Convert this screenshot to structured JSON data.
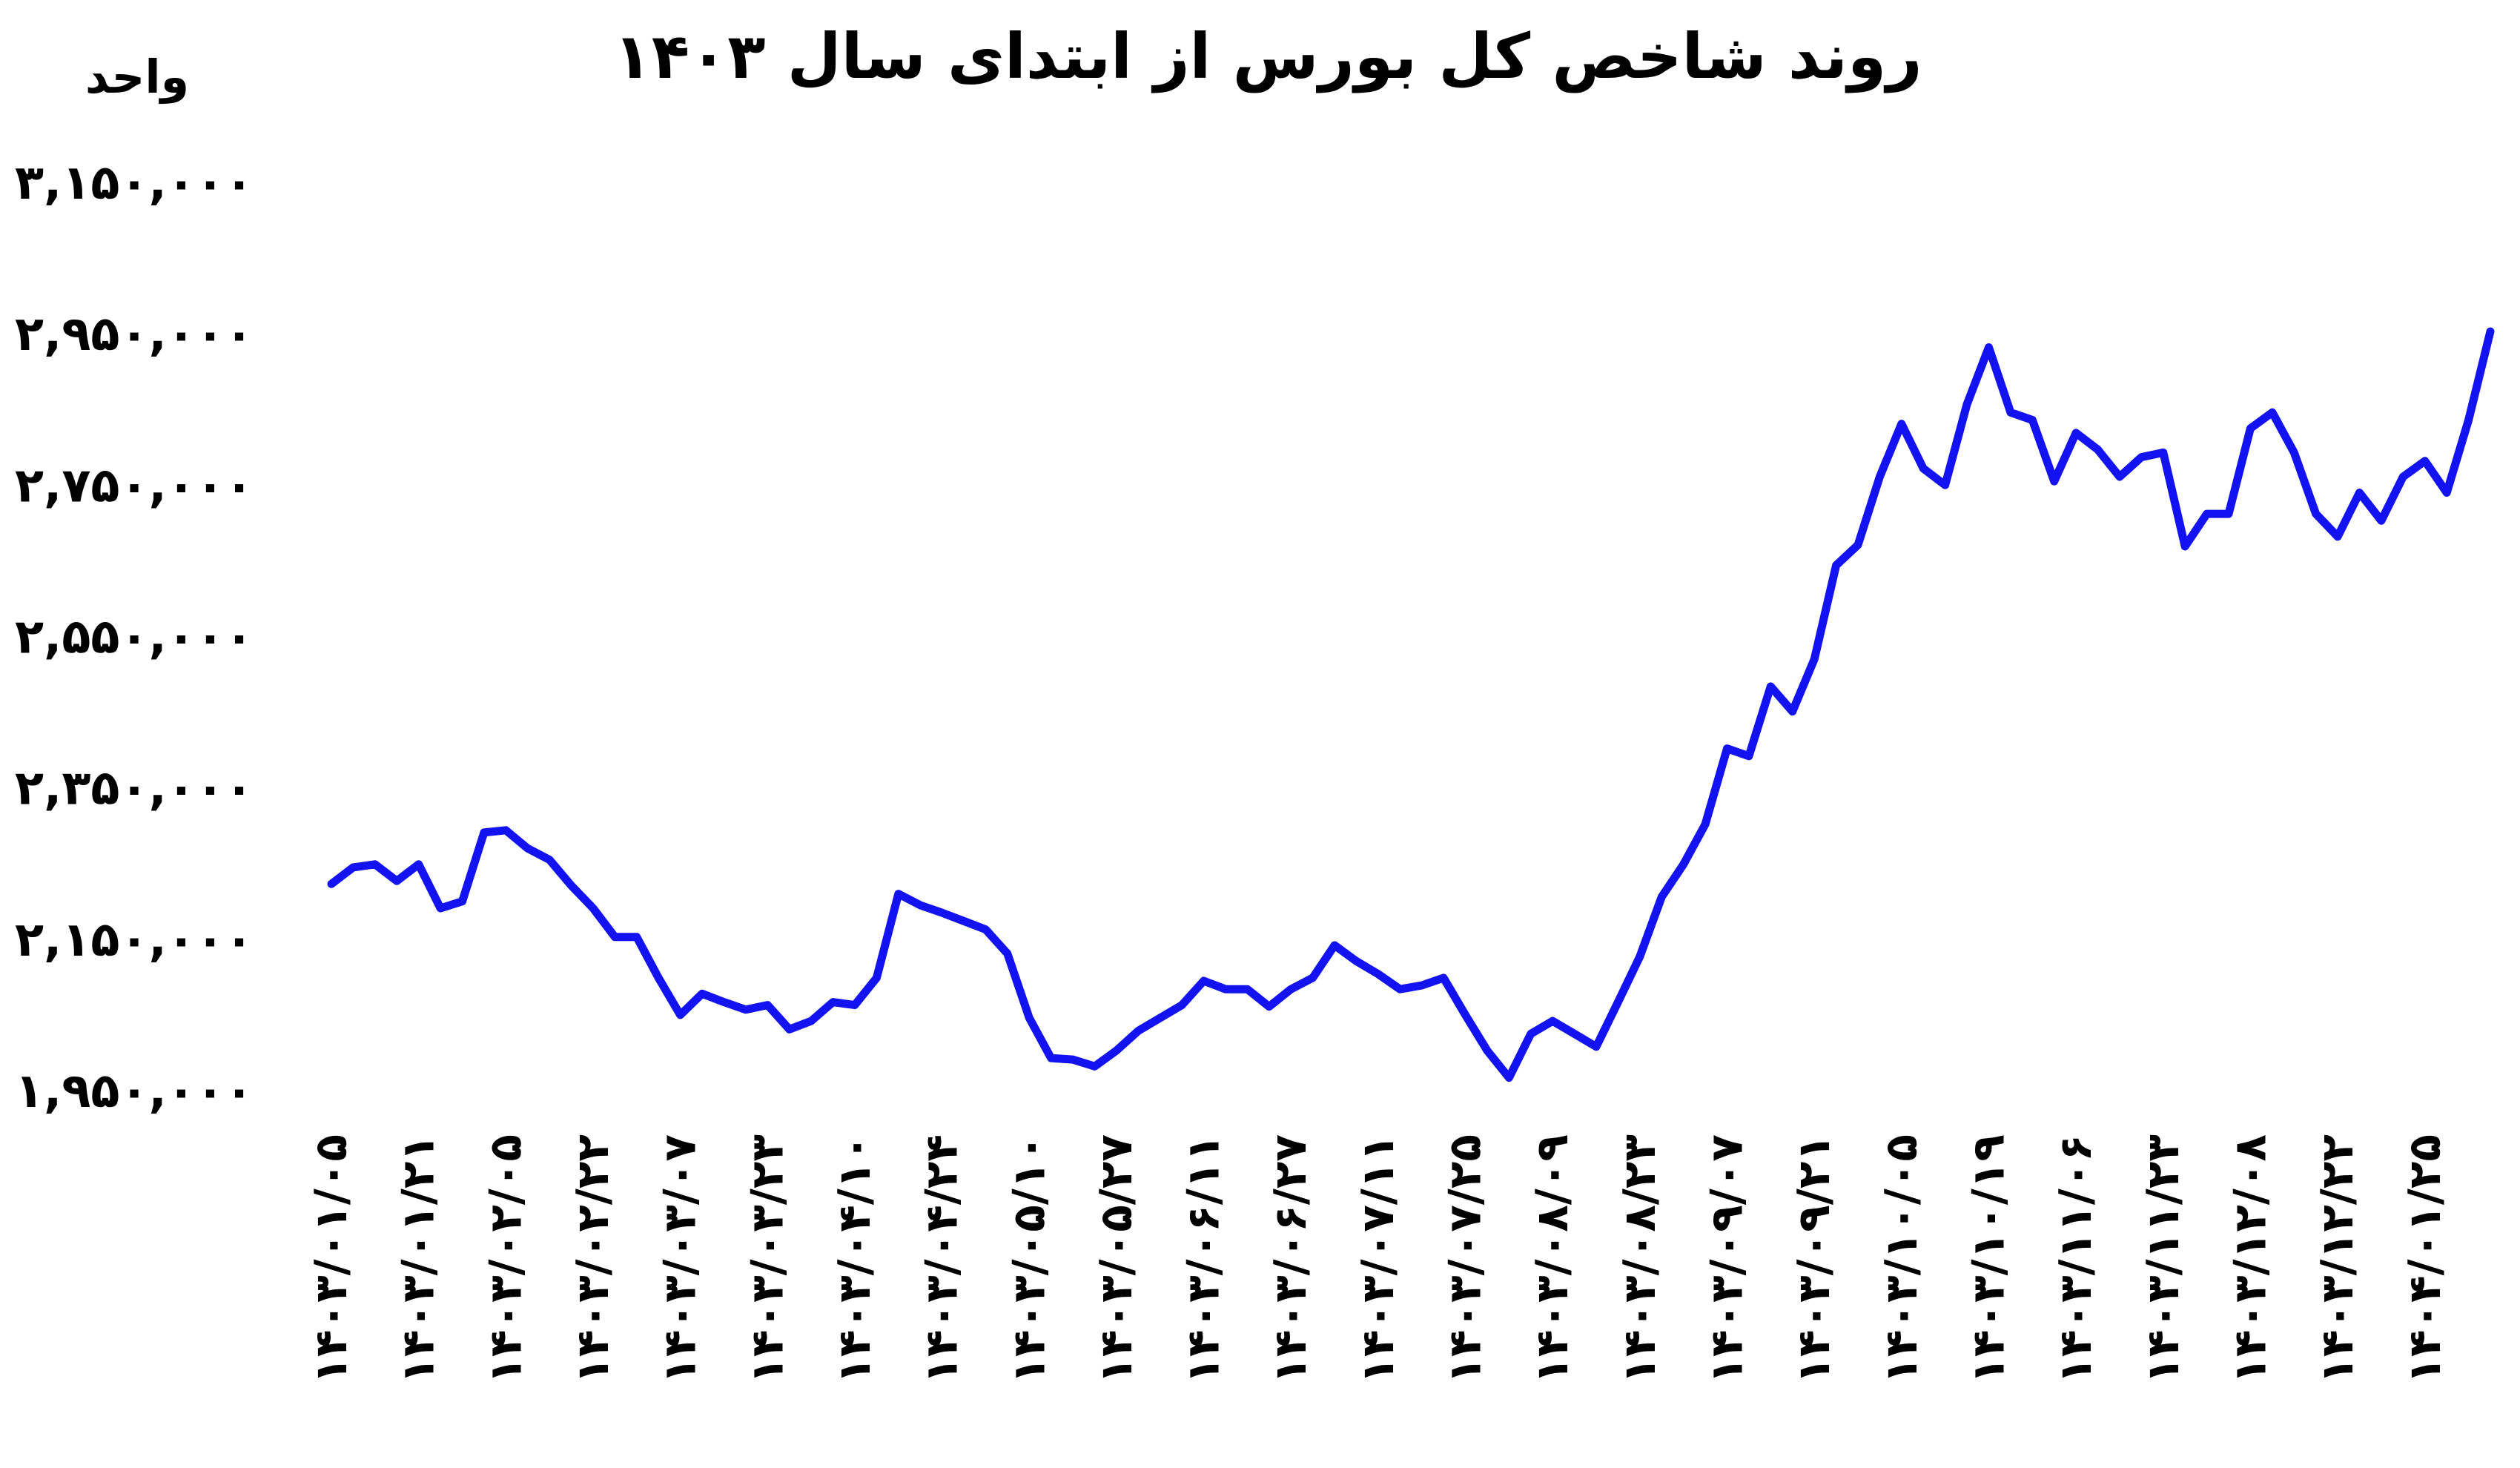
{
  "chart_data": {
    "type": "line",
    "title": "روند شاخص کل بورس از ابتدای سال ۱۴۰۳",
    "y_label": "واحد",
    "color": "#1212f2",
    "ylim": [
      1950000,
      3150000
    ],
    "yticks": [
      {
        "value": 1950000,
        "label": "۱,۹۵۰,۰۰۰"
      },
      {
        "value": 2150000,
        "label": "۲,۱۵۰,۰۰۰"
      },
      {
        "value": 2350000,
        "label": "۲,۳۵۰,۰۰۰"
      },
      {
        "value": 2550000,
        "label": "۲,۵۵۰,۰۰۰"
      },
      {
        "value": 2750000,
        "label": "۲,۷۵۰,۰۰۰"
      },
      {
        "value": 2950000,
        "label": "۲,۹۵۰,۰۰۰"
      },
      {
        "value": 3150000,
        "label": "۳,۱۵۰,۰۰۰"
      }
    ],
    "grid": false,
    "categories": [
      "۱۴۰۳/۰۱/۰۵",
      null,
      null,
      null,
      "۱۴۰۳/۰۱/۲۱",
      null,
      null,
      null,
      "۱۴۰۳/۰۲/۰۵",
      null,
      null,
      null,
      "۱۴۰۳/۰۲/۲۲",
      null,
      null,
      null,
      "۱۴۰۳/۰۳/۰۷",
      null,
      null,
      null,
      "۱۴۰۳/۰۳/۲۳",
      null,
      null,
      null,
      "۱۴۰۳/۰۴/۱۰",
      null,
      null,
      null,
      "۱۴۰۳/۰۴/۲۴",
      null,
      null,
      null,
      "۱۴۰۳/۰۵/۱۰",
      null,
      null,
      null,
      "۱۴۰۳/۰۵/۲۷",
      null,
      null,
      null,
      "۱۴۰۳/۰۶/۱۱",
      null,
      null,
      null,
      "۱۴۰۳/۰۶/۲۷",
      null,
      null,
      null,
      "۱۴۰۳/۰۷/۱۱",
      null,
      null,
      null,
      "۱۴۰۳/۰۷/۲۵",
      null,
      null,
      null,
      "۱۴۰۳/۰۸/۰۹",
      null,
      null,
      null,
      "۱۴۰۳/۰۸/۲۳",
      null,
      null,
      null,
      "۱۴۰۳/۰۹/۰۷",
      null,
      null,
      null,
      "۱۴۰۳/۰۹/۲۱",
      null,
      null,
      null,
      "۱۴۰۳/۱۰/۰۵",
      null,
      null,
      null,
      "۱۴۰۳/۱۰/۱۹",
      null,
      null,
      null,
      "۱۴۰۳/۱۱/۰۶",
      null,
      null,
      null,
      "۱۴۰۳/۱۱/۲۳",
      null,
      null,
      null,
      "۱۴۰۳/۱۲/۰۸",
      null,
      null,
      null,
      "۱۴۰۳/۱۲/۲۲",
      null,
      null,
      null,
      "۱۴۰۴/۰۱/۲۵",
      null,
      null,
      null
    ],
    "values": [
      2223000,
      2245000,
      2249000,
      2227000,
      2249000,
      2191000,
      2200000,
      2291000,
      2294000,
      2270000,
      2255000,
      2221000,
      2191000,
      2153000,
      2153000,
      2099000,
      2050000,
      2078000,
      2067000,
      2057000,
      2063000,
      2031000,
      2042000,
      2067000,
      2063000,
      2099000,
      2210000,
      2195000,
      2185000,
      2174000,
      2163000,
      2131000,
      2046000,
      1993000,
      1991000,
      1982000,
      2003000,
      2029000,
      2046000,
      2063000,
      2095000,
      2084000,
      2084000,
      2061000,
      2084000,
      2099000,
      2142000,
      2121000,
      2104000,
      2084000,
      2089000,
      2099000,
      2050000,
      2003000,
      1967000,
      2025000,
      2042000,
      2025000,
      2008000,
      2067000,
      2127000,
      2206000,
      2249000,
      2302000,
      2402000,
      2392000,
      2484000,
      2451000,
      2520000,
      2644000,
      2671000,
      2761000,
      2831000,
      2772000,
      2750000,
      2857000,
      2932000,
      2846000,
      2836000,
      2755000,
      2819000,
      2797000,
      2761000,
      2787000,
      2793000,
      2669000,
      2712000,
      2712000,
      2825000,
      2846000,
      2793000,
      2712000,
      2682000,
      2740000,
      2703000,
      2761000,
      2782000,
      2740000,
      2836000,
      2953000
    ]
  }
}
